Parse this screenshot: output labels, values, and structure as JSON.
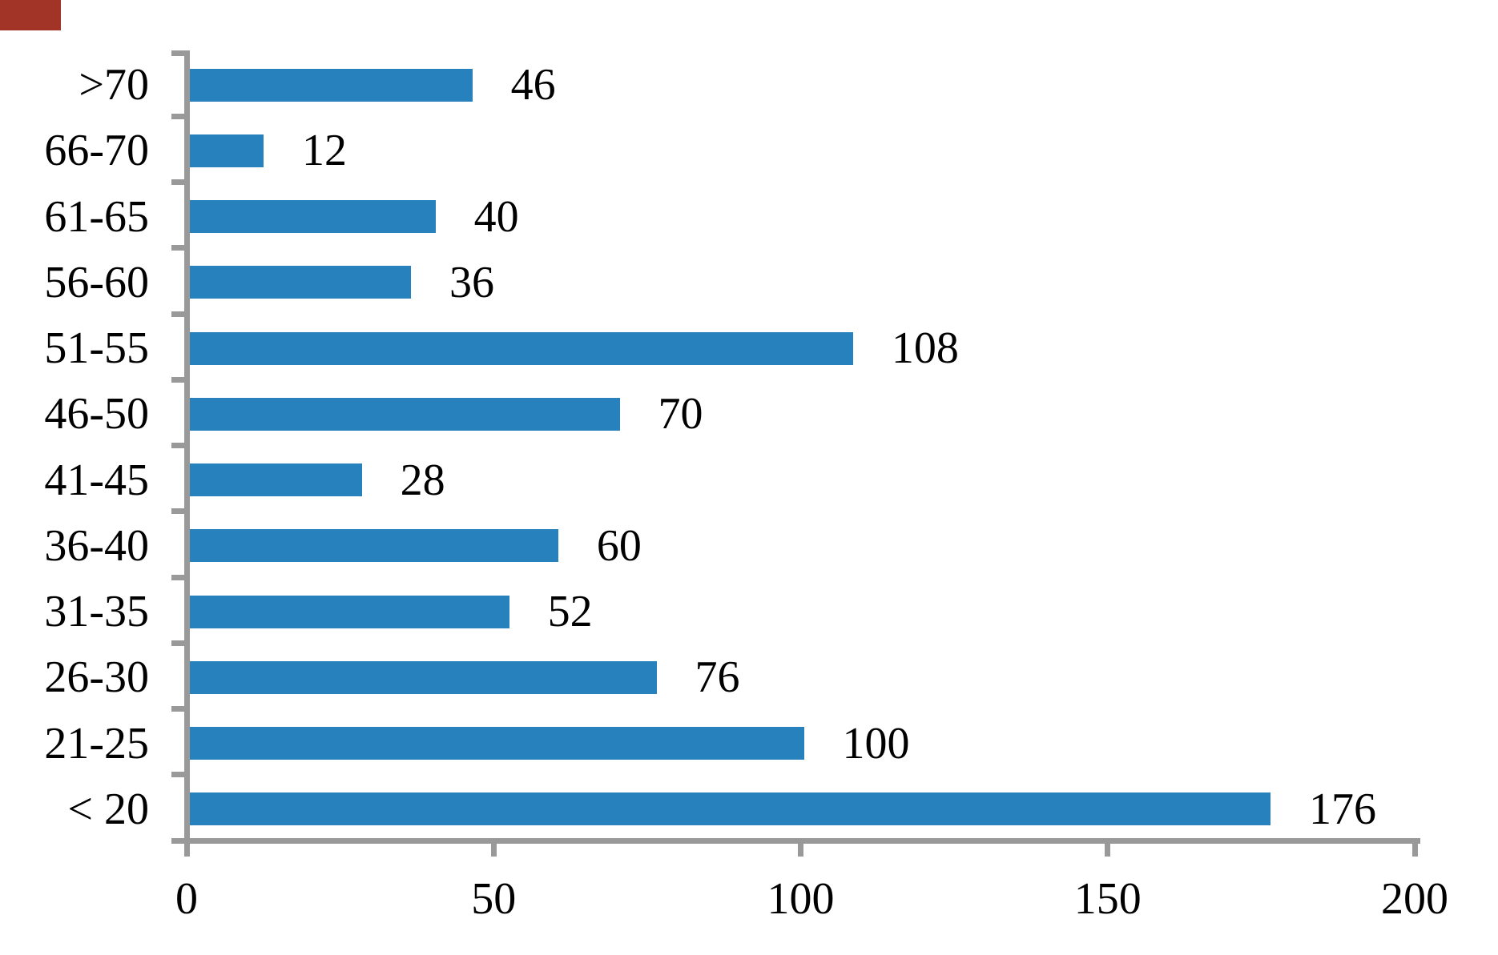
{
  "chart_data": {
    "type": "bar",
    "orientation": "horizontal",
    "title": "",
    "xlabel": "",
    "ylabel": "",
    "categories": [
      ">70",
      "66-70",
      "61-65",
      "56-60",
      "51-55",
      "46-50",
      "41-45",
      "36-40",
      "31-35",
      "26-30",
      "21-25",
      "< 20"
    ],
    "values": [
      46,
      12,
      40,
      36,
      108,
      70,
      28,
      60,
      52,
      76,
      100,
      176
    ],
    "data_labels": [
      "46",
      "12",
      "40",
      "36",
      "108",
      "70",
      "28",
      "60",
      "52",
      "76",
      "100",
      "176"
    ],
    "xlim": [
      0,
      200
    ],
    "x_ticks": [
      0,
      50,
      100,
      150,
      200
    ],
    "x_tick_labels": [
      "0",
      "50",
      "100",
      "150",
      "200"
    ],
    "grid": false,
    "legend": false,
    "bar_color": "#2781BD",
    "axis_color": "#999999",
    "label_color": "#000000"
  },
  "decorations": {
    "corner_marker_color": "#A23327"
  }
}
